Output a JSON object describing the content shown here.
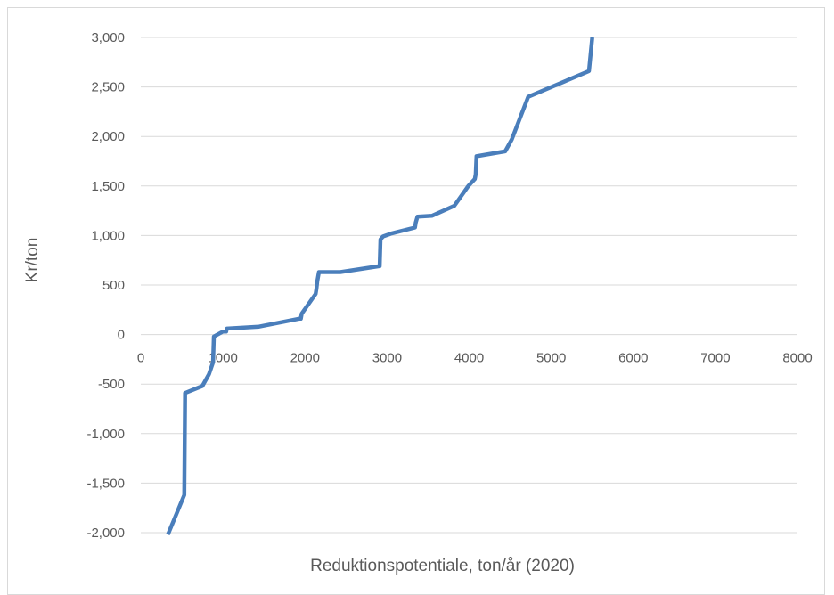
{
  "chart_data": {
    "type": "line",
    "title": "",
    "xlabel": "Reduktionspotentiale, ton/år (2020)",
    "ylabel": "Kr/ton",
    "xlim": [
      0,
      8000
    ],
    "ylim": [
      -2000,
      3000
    ],
    "x_ticks": [
      "0",
      "1000",
      "2000",
      "3000",
      "4000",
      "5000",
      "6000",
      "7000",
      "8000"
    ],
    "x_tick_values": [
      0,
      1000,
      2000,
      3000,
      4000,
      5000,
      6000,
      7000,
      8000
    ],
    "y_ticks": [
      "-2,000",
      "-1,500",
      "-1,000",
      "-500",
      "0",
      "500",
      "1,000",
      "1,500",
      "2,000",
      "2,500",
      "3,000"
    ],
    "y_tick_values": [
      -2000,
      -1500,
      -1000,
      -500,
      0,
      500,
      1000,
      1500,
      2000,
      2500,
      3000
    ],
    "grid": {
      "horizontal": true,
      "vertical": false
    },
    "legend": "none",
    "series_color": "#4a7ebb",
    "series": [
      {
        "x": [
          330,
          440,
          530,
          540,
          750,
          830,
          880,
          890,
          1000,
          1040,
          1050,
          1440,
          1930,
          1950,
          1960,
          2130,
          2140,
          2150,
          2170,
          2430,
          2900,
          2910,
          2920,
          2950,
          3020,
          3050,
          3340,
          3350,
          3370,
          3550,
          3820,
          3990,
          4070,
          4080,
          4090,
          4440,
          4520,
          4720,
          5460,
          5500
        ],
        "y": [
          -2020,
          -1800,
          -1620,
          -590,
          -520,
          -400,
          -280,
          -20,
          30,
          30,
          60,
          80,
          160,
          160,
          210,
          410,
          460,
          540,
          630,
          630,
          690,
          690,
          960,
          990,
          1010,
          1020,
          1080,
          1130,
          1190,
          1200,
          1300,
          1500,
          1570,
          1620,
          1800,
          1850,
          1970,
          2400,
          2660,
          3000
        ]
      }
    ]
  }
}
